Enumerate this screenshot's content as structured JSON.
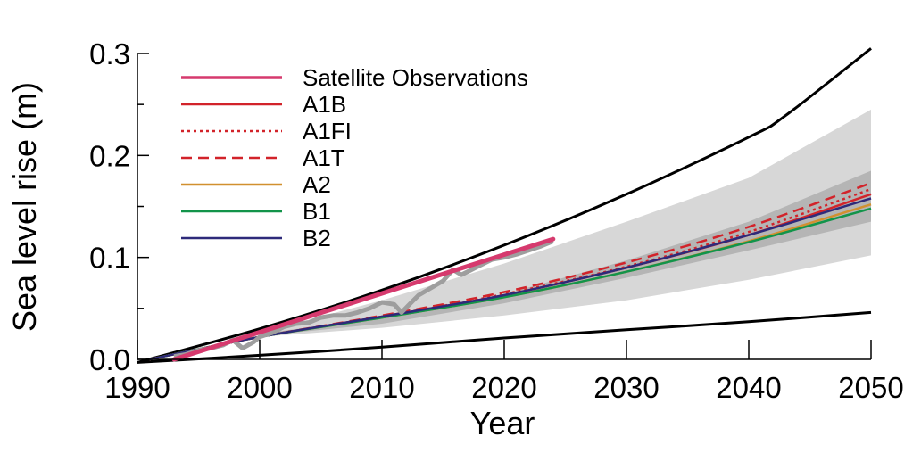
{
  "chart_data": {
    "type": "line",
    "xlabel": "Year",
    "ylabel": "Sea level rise (m)",
    "xlim": [
      1990,
      2050
    ],
    "ylim": [
      0.0,
      0.3
    ],
    "x_ticks": [
      "1990",
      "2000",
      "2010",
      "2020",
      "2030",
      "2040",
      "2050"
    ],
    "y_ticks": [
      "0.0",
      "0.1",
      "0.2",
      "0.3"
    ],
    "grid": false,
    "legend_placement": "top-left",
    "colors": {
      "satellite": "#d63a6e",
      "observed_raw": "#9e9e9e",
      "A1B": "#d2232a",
      "A1FI": "#d2232a",
      "A1T": "#d2232a",
      "A2": "#d1902f",
      "B1": "#12944a",
      "B2": "#2e2a7a",
      "envelope": "#000000",
      "outer_band": "#d7d7d7",
      "inner_band": "#b5b5b5"
    },
    "legend": [
      {
        "key": "satellite",
        "label": "Satellite Observations",
        "style": "solid"
      },
      {
        "key": "A1B",
        "label": "A1B",
        "style": "solid"
      },
      {
        "key": "A1FI",
        "label": "A1FI",
        "style": "dotted"
      },
      {
        "key": "A1T",
        "label": "A1T",
        "style": "dashed"
      },
      {
        "key": "A2",
        "label": "A2",
        "style": "solid"
      },
      {
        "key": "B1",
        "label": "B1",
        "style": "solid"
      },
      {
        "key": "B2",
        "label": "B2",
        "style": "solid"
      }
    ],
    "satellite_fit": {
      "x": [
        1993,
        2024
      ],
      "y": [
        0.0,
        0.118
      ]
    },
    "satellite_raw": {
      "x": [
        1993,
        1994,
        1995,
        1996,
        1997,
        1997.8,
        1998.6,
        1999.5,
        2000,
        2001,
        2002,
        2003,
        2004,
        2005,
        2006,
        2007,
        2008,
        2009,
        2010,
        2011,
        2011.6,
        2012.5,
        2013,
        2014,
        2015,
        2015.8,
        2016.5,
        2017,
        2018,
        2019,
        2020,
        2021,
        2022,
        2023,
        2024
      ],
      "y": [
        0.003,
        0.005,
        0.009,
        0.011,
        0.014,
        0.019,
        0.011,
        0.017,
        0.022,
        0.026,
        0.032,
        0.035,
        0.036,
        0.041,
        0.043,
        0.043,
        0.046,
        0.05,
        0.056,
        0.054,
        0.046,
        0.057,
        0.063,
        0.07,
        0.077,
        0.088,
        0.083,
        0.086,
        0.092,
        0.098,
        0.1,
        0.103,
        0.107,
        0.111,
        0.116
      ]
    },
    "envelope_upper": {
      "x": [
        1990,
        2000,
        2010,
        2020,
        2030,
        2040,
        2043,
        2050
      ],
      "y": [
        -0.003,
        0.03,
        0.068,
        0.112,
        0.162,
        0.218,
        0.239,
        0.305
      ]
    },
    "envelope_lower": {
      "x": [
        1990,
        2000,
        2010,
        2020,
        2030,
        2040,
        2050
      ],
      "y": [
        -0.003,
        0.004,
        0.012,
        0.021,
        0.029,
        0.037,
        0.046
      ]
    },
    "band_outer": {
      "x": [
        2000,
        2010,
        2020,
        2030,
        2040,
        2050
      ],
      "upper": [
        0.026,
        0.058,
        0.094,
        0.135,
        0.178,
        0.245
      ],
      "lower": [
        0.022,
        0.031,
        0.043,
        0.058,
        0.078,
        0.102
      ]
    },
    "band_inner": {
      "x": [
        2000,
        2010,
        2020,
        2030,
        2040,
        2050
      ],
      "upper": [
        0.025,
        0.041,
        0.064,
        0.097,
        0.135,
        0.185
      ],
      "lower": [
        0.023,
        0.035,
        0.055,
        0.08,
        0.107,
        0.135
      ]
    },
    "series": [
      {
        "name": "A1B",
        "x": [
          1991,
          2000,
          2010,
          2020,
          2030,
          2040,
          2050
        ],
        "y": [
          0.0,
          0.022,
          0.042,
          0.063,
          0.09,
          0.122,
          0.162
        ]
      },
      {
        "name": "A1FI",
        "x": [
          1991,
          2000,
          2010,
          2020,
          2030,
          2040,
          2050
        ],
        "y": [
          0.0,
          0.022,
          0.042,
          0.064,
          0.091,
          0.125,
          0.167
        ]
      },
      {
        "name": "A1T",
        "x": [
          1991,
          2000,
          2010,
          2020,
          2030,
          2040,
          2050
        ],
        "y": [
          0.0,
          0.022,
          0.043,
          0.066,
          0.095,
          0.13,
          0.173
        ]
      },
      {
        "name": "A2",
        "x": [
          1991,
          2000,
          2010,
          2020,
          2030,
          2040,
          2050
        ],
        "y": [
          0.0,
          0.022,
          0.041,
          0.061,
          0.086,
          0.116,
          0.152
        ]
      },
      {
        "name": "B1",
        "x": [
          1991,
          2000,
          2010,
          2020,
          2030,
          2040,
          2050
        ],
        "y": [
          0.0,
          0.022,
          0.041,
          0.061,
          0.086,
          0.115,
          0.148
        ]
      },
      {
        "name": "B2",
        "x": [
          1991,
          2000,
          2010,
          2020,
          2030,
          2040,
          2050
        ],
        "y": [
          0.0,
          0.022,
          0.042,
          0.063,
          0.09,
          0.122,
          0.158
        ]
      }
    ]
  }
}
